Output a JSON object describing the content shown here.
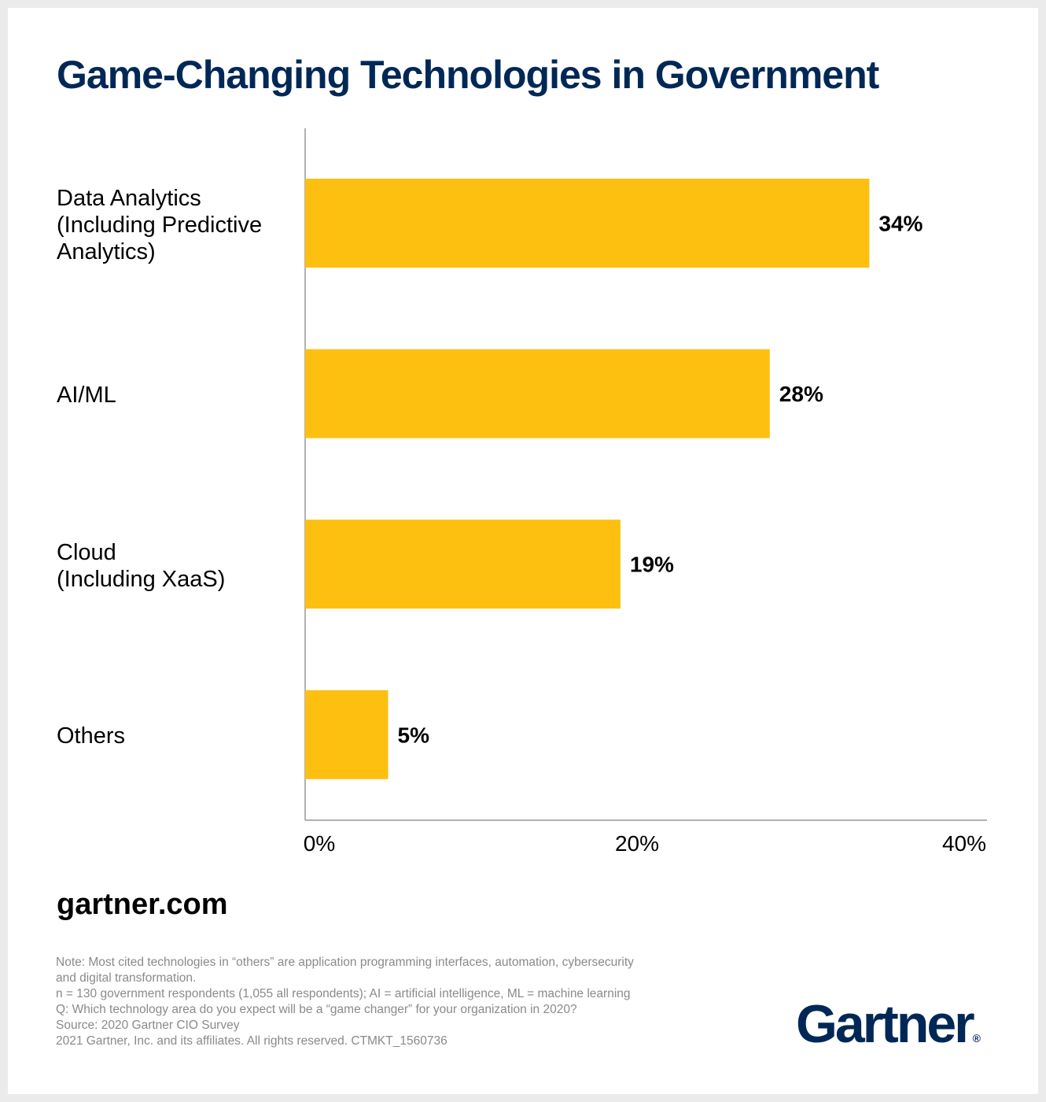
{
  "title": "Game-Changing Technologies in Government",
  "chart_data": {
    "type": "bar",
    "orientation": "horizontal",
    "categories": [
      "Data Analytics\n(Including Predictive\nAnalytics)",
      "AI/ML",
      "Cloud\n(Including XaaS)",
      "Others"
    ],
    "values": [
      34,
      28,
      19,
      5
    ],
    "data_labels": [
      "34%",
      "28%",
      "19%",
      "5%"
    ],
    "xlim": [
      0,
      40
    ],
    "xticks": [
      0,
      20,
      40
    ],
    "xtick_labels": [
      "0%",
      "20%",
      "40%"
    ],
    "grid": false,
    "bar_color": "#fdc010",
    "title": "Game-Changing Technologies in Government"
  },
  "site": "gartner.com",
  "notes": [
    "Note: Most cited technologies in “others” are application programming interfaces, automation, cybersecurity",
    "and digital transformation.",
    "n = 130 government respondents (1,055 all respondents); AI = artificial intelligence, ML = machine learning",
    "Q: Which technology area do you expect will be a “game changer” for your organization in 2020?",
    "Source: 2020 Gartner CIO Survey",
    "2021 Gartner, Inc. and its affiliates. All rights reserved. CTMKT_1560736"
  ],
  "logo": {
    "text": "Gartner",
    "mark": "®"
  },
  "colors": {
    "title": "#002856",
    "bar": "#fdc010",
    "notes": "#8a8a8a"
  }
}
